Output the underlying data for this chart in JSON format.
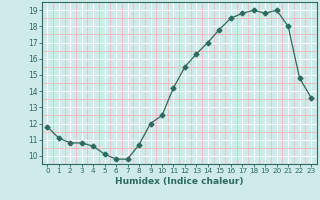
{
  "x": [
    0,
    1,
    2,
    3,
    4,
    5,
    6,
    7,
    8,
    9,
    10,
    11,
    12,
    13,
    14,
    15,
    16,
    17,
    18,
    19,
    20,
    21,
    22,
    23
  ],
  "y": [
    11.8,
    11.1,
    10.8,
    10.8,
    10.6,
    10.1,
    9.8,
    9.8,
    10.7,
    12.0,
    12.5,
    14.2,
    15.5,
    16.3,
    17.0,
    17.8,
    18.5,
    18.8,
    19.0,
    18.8,
    19.0,
    18.0,
    14.8,
    13.6
  ],
  "line_color": "#2e6b5e",
  "marker": "D",
  "marker_size": 2.5,
  "bg_color": "#ceeaea",
  "grid_color_major": "#ffffff",
  "grid_color_minor": "#f0b8b8",
  "xlabel": "Humidex (Indice chaleur)",
  "xlim": [
    -0.5,
    23.5
  ],
  "ylim": [
    9.5,
    19.5
  ],
  "yticks": [
    10,
    11,
    12,
    13,
    14,
    15,
    16,
    17,
    18,
    19
  ],
  "xticks": [
    0,
    1,
    2,
    3,
    4,
    5,
    6,
    7,
    8,
    9,
    10,
    11,
    12,
    13,
    14,
    15,
    16,
    17,
    18,
    19,
    20,
    21,
    22,
    23
  ]
}
